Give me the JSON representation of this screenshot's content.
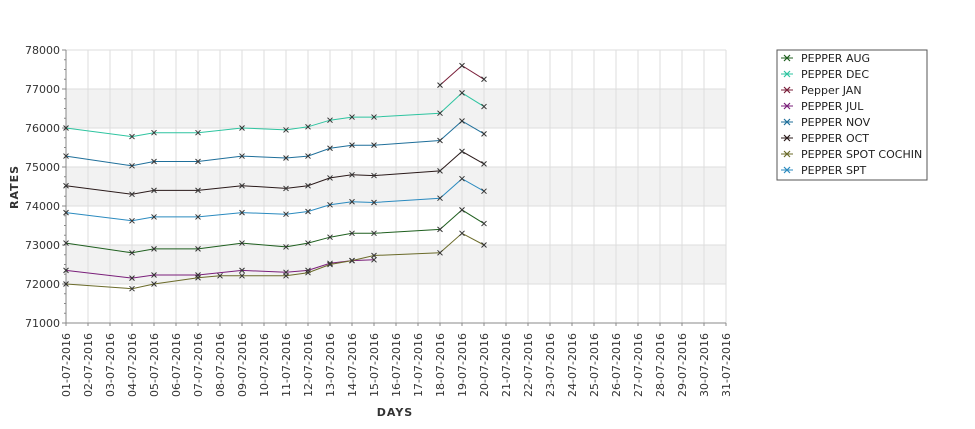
{
  "chart_data": {
    "type": "line",
    "xlabel": "DAYS",
    "ylabel": "RATES",
    "ylim": [
      71000,
      78000
    ],
    "yticks": [
      "71000",
      "72000",
      "73000",
      "74000",
      "75000",
      "76000",
      "77000",
      "78000"
    ],
    "categories": [
      "01-07-2016",
      "02-07-2016",
      "03-07-2016",
      "04-07-2016",
      "05-07-2016",
      "06-07-2016",
      "07-07-2016",
      "08-07-2016",
      "09-07-2016",
      "10-07-2016",
      "11-07-2016",
      "12-07-2016",
      "13-07-2016",
      "14-07-2016",
      "15-07-2016",
      "16-07-2016",
      "17-07-2016",
      "18-07-2016",
      "19-07-2016",
      "20-07-2016",
      "21-07-2016",
      "22-07-2016",
      "23-07-2016",
      "24-07-2016",
      "25-07-2016",
      "26-07-2016",
      "27-07-2016",
      "28-07-2016",
      "29-07-2016",
      "30-07-2016",
      "31-07-2016"
    ],
    "legend_position": "top-right",
    "grid": true,
    "series": [
      {
        "name": "PEPPER AUG",
        "color": "#1f5f1f",
        "points": [
          [
            0,
            73050
          ],
          [
            3,
            72800
          ],
          [
            4,
            72900
          ],
          [
            6,
            72900
          ],
          [
            8,
            73050
          ],
          [
            10,
            72950
          ],
          [
            11,
            73050
          ],
          [
            12,
            73200
          ],
          [
            13,
            73300
          ],
          [
            14,
            73300
          ],
          [
            17,
            73400
          ],
          [
            18,
            73900
          ],
          [
            19,
            73550
          ]
        ]
      },
      {
        "name": "PEPPER DEC",
        "color": "#2ec4a0",
        "points": [
          [
            0,
            76000
          ],
          [
            3,
            75780
          ],
          [
            4,
            75880
          ],
          [
            6,
            75880
          ],
          [
            8,
            76000
          ],
          [
            10,
            75950
          ],
          [
            11,
            76030
          ],
          [
            12,
            76200
          ],
          [
            13,
            76280
          ],
          [
            14,
            76280
          ],
          [
            17,
            76380
          ],
          [
            18,
            76900
          ],
          [
            19,
            76550
          ]
        ]
      },
      {
        "name": "Pepper JAN",
        "color": "#7a1f3a",
        "points": [
          [
            17,
            77100
          ],
          [
            18,
            77600
          ],
          [
            19,
            77250
          ]
        ]
      },
      {
        "name": "PEPPER JUL",
        "color": "#7a1f7a",
        "points": [
          [
            0,
            72350
          ],
          [
            3,
            72150
          ],
          [
            4,
            72230
          ],
          [
            6,
            72230
          ],
          [
            8,
            72350
          ],
          [
            10,
            72300
          ],
          [
            11,
            72350
          ],
          [
            12,
            72530
          ],
          [
            13,
            72600
          ],
          [
            14,
            72620
          ]
        ]
      },
      {
        "name": "PEPPER NOV",
        "color": "#1f6f9a",
        "points": [
          [
            0,
            75280
          ],
          [
            3,
            75030
          ],
          [
            4,
            75140
          ],
          [
            6,
            75140
          ],
          [
            8,
            75280
          ],
          [
            10,
            75230
          ],
          [
            11,
            75280
          ],
          [
            12,
            75480
          ],
          [
            13,
            75560
          ],
          [
            14,
            75560
          ],
          [
            17,
            75680
          ],
          [
            18,
            76180
          ],
          [
            19,
            75850
          ]
        ]
      },
      {
        "name": "PEPPER OCT",
        "color": "#2a1a1a",
        "points": [
          [
            0,
            74520
          ],
          [
            3,
            74300
          ],
          [
            4,
            74400
          ],
          [
            6,
            74400
          ],
          [
            8,
            74520
          ],
          [
            10,
            74450
          ],
          [
            11,
            74520
          ],
          [
            12,
            74720
          ],
          [
            13,
            74800
          ],
          [
            14,
            74780
          ],
          [
            17,
            74900
          ],
          [
            18,
            75400
          ],
          [
            19,
            75080
          ]
        ]
      },
      {
        "name": "PEPPER SPOT COCHIN",
        "color": "#6b6b2a",
        "points": [
          [
            0,
            72000
          ],
          [
            3,
            71880
          ],
          [
            4,
            72000
          ],
          [
            6,
            72160
          ],
          [
            7,
            72210
          ],
          [
            8,
            72210
          ],
          [
            10,
            72210
          ],
          [
            11,
            72290
          ],
          [
            12,
            72500
          ],
          [
            13,
            72600
          ],
          [
            14,
            72730
          ],
          [
            17,
            72800
          ],
          [
            18,
            73300
          ],
          [
            19,
            73000
          ]
        ]
      },
      {
        "name": "PEPPER SPT",
        "color": "#2a8abf",
        "points": [
          [
            0,
            73830
          ],
          [
            3,
            73620
          ],
          [
            4,
            73720
          ],
          [
            6,
            73720
          ],
          [
            8,
            73830
          ],
          [
            10,
            73790
          ],
          [
            11,
            73860
          ],
          [
            12,
            74030
          ],
          [
            13,
            74110
          ],
          [
            14,
            74090
          ],
          [
            17,
            74200
          ],
          [
            18,
            74700
          ],
          [
            19,
            74380
          ]
        ]
      }
    ]
  }
}
